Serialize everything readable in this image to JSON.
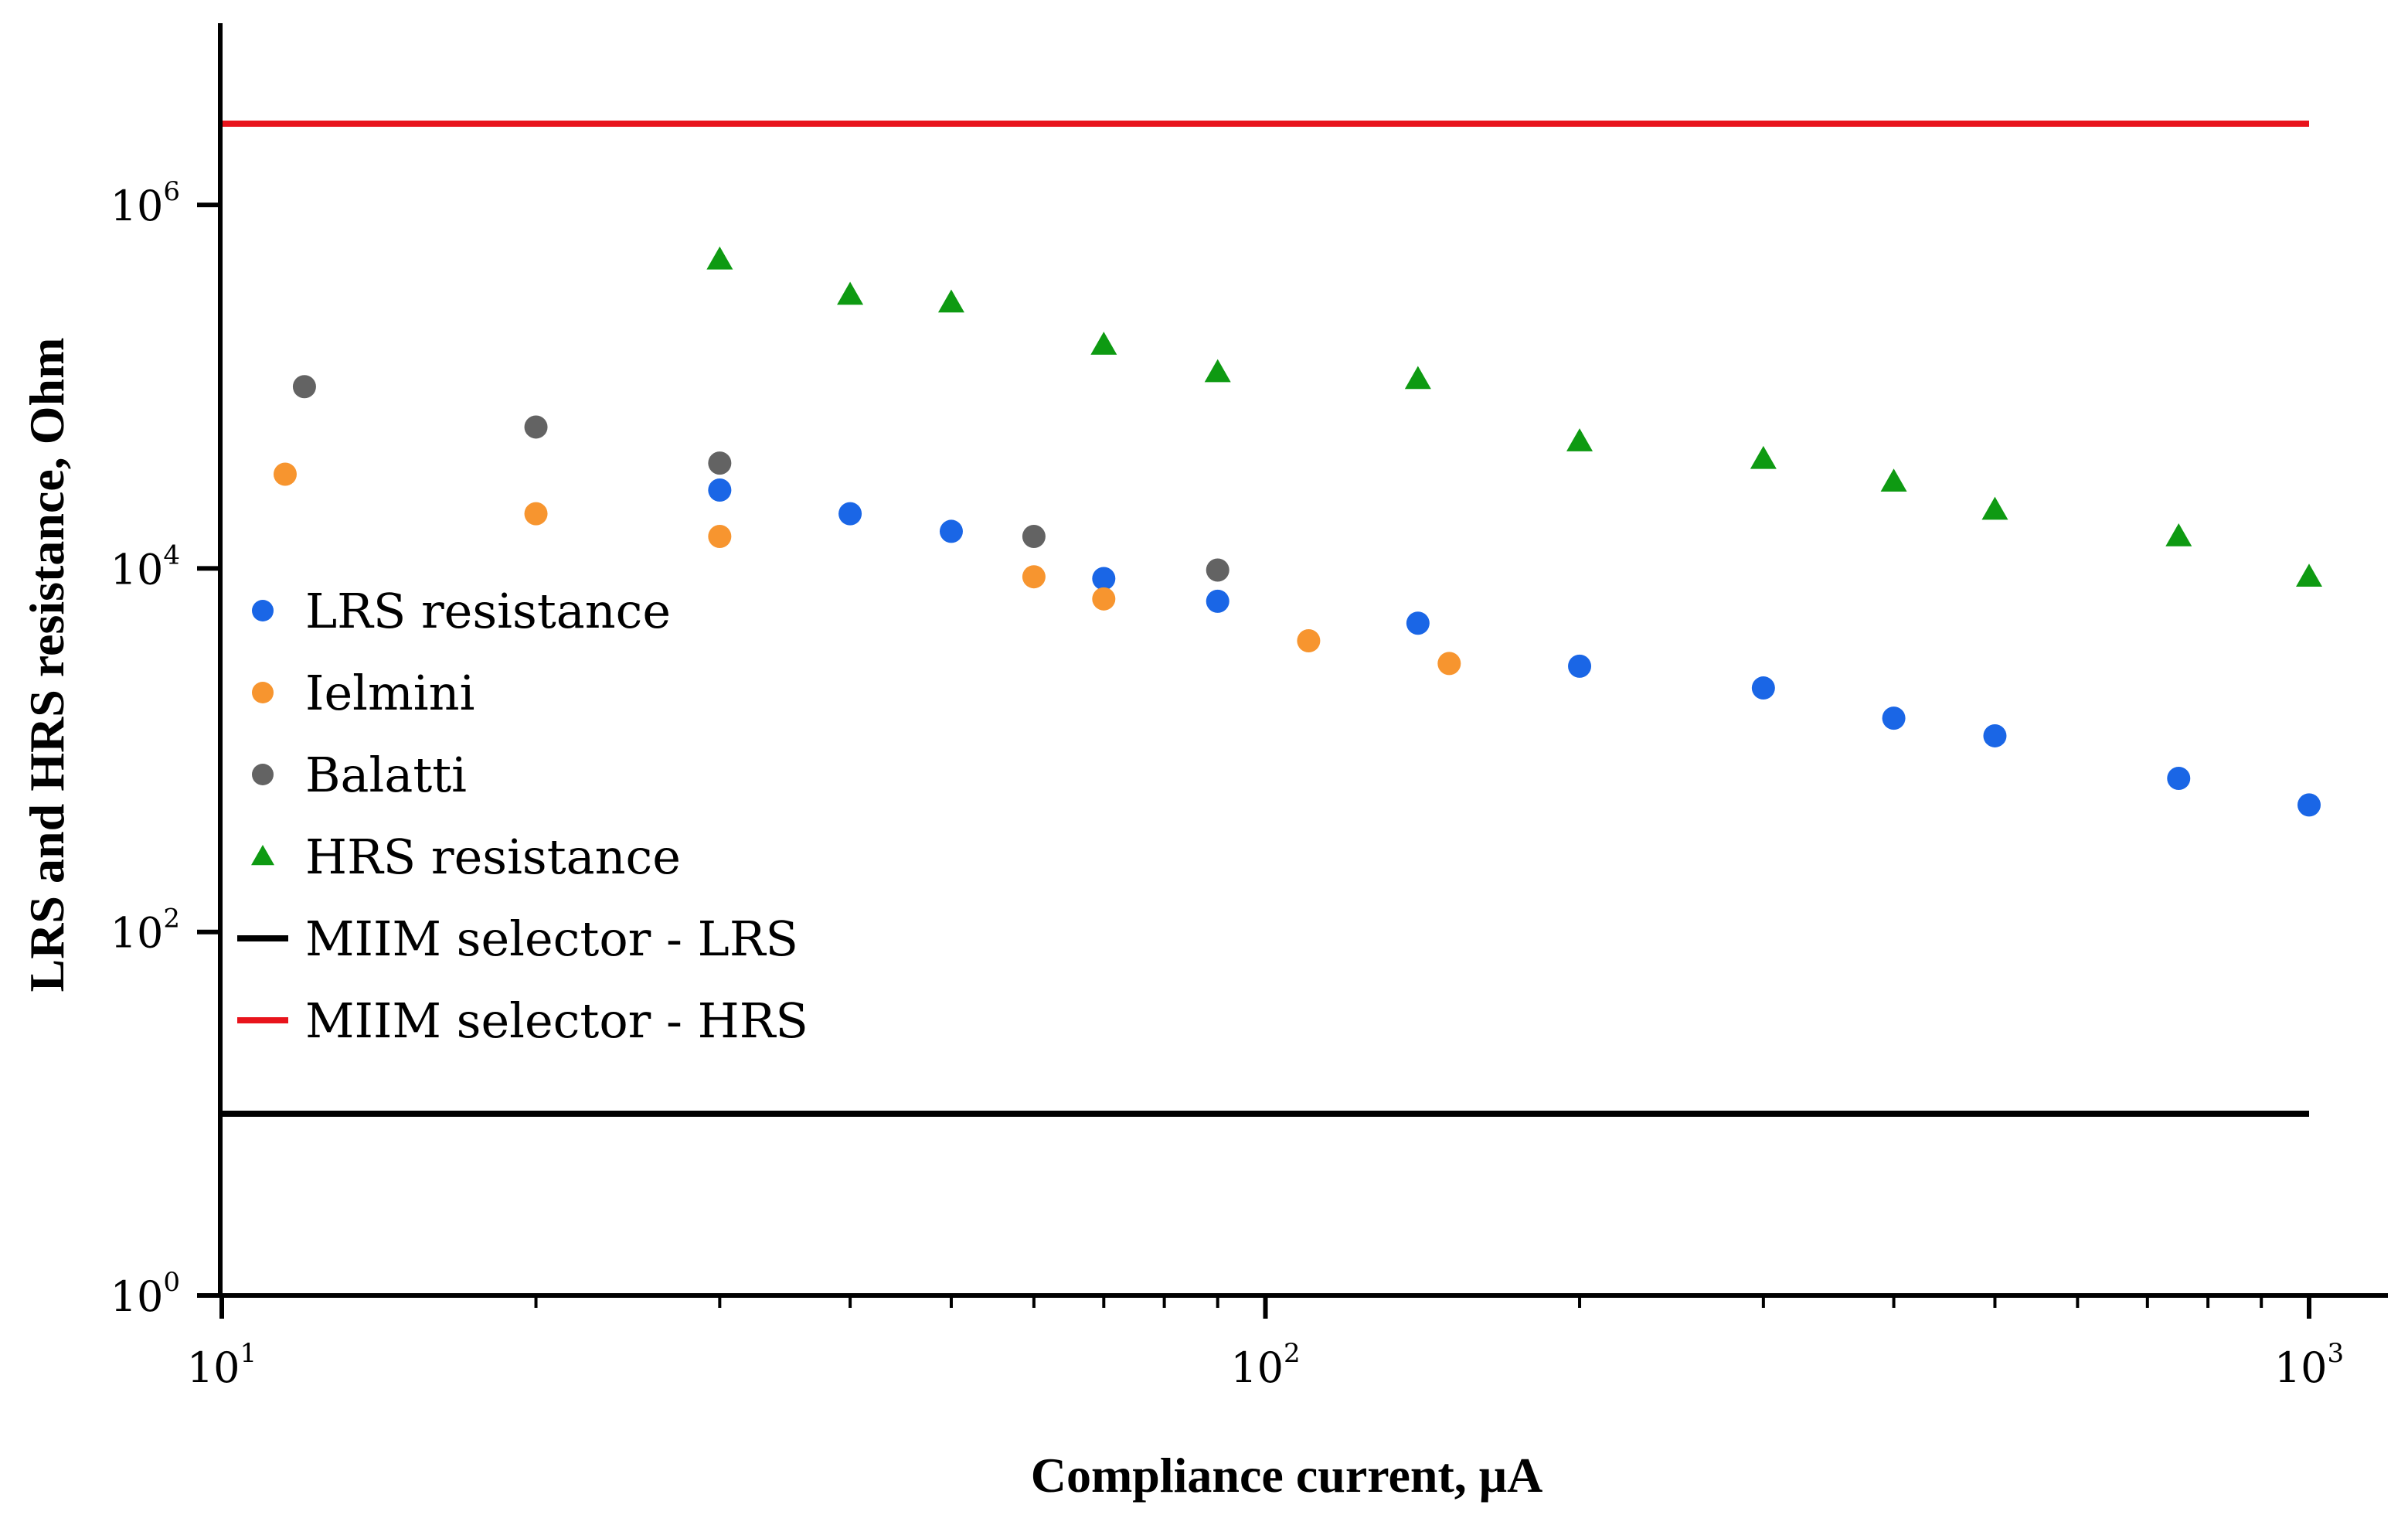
{
  "chart_data": {
    "type": "scatter",
    "title": "",
    "xlabel": "Compliance current, μA",
    "ylabel": "LRS and HRS resistance, Ohm",
    "xscale": "log",
    "yscale": "log",
    "xlim": [
      10,
      1000
    ],
    "ylim": [
      1,
      10000000
    ],
    "x_ticks": [
      {
        "value": 10,
        "base": "10",
        "exp": "1"
      },
      {
        "value": 100,
        "base": "10",
        "exp": "2"
      },
      {
        "value": 1000,
        "base": "10",
        "exp": "3"
      }
    ],
    "y_ticks": [
      {
        "value": 1,
        "base": "10",
        "exp": "0"
      },
      {
        "value": 100,
        "base": "10",
        "exp": "2"
      },
      {
        "value": 10000,
        "base": "10",
        "exp": "4"
      },
      {
        "value": 1000000,
        "base": "10",
        "exp": "6"
      }
    ],
    "legend_position": "center-left",
    "series": [
      {
        "name": "LRS resistance",
        "marker": "circle",
        "color": "#1a66e6",
        "x": [
          30,
          40,
          50,
          70,
          90,
          140,
          200,
          300,
          400,
          500,
          750,
          1000
        ],
        "y": [
          27000,
          20000,
          16000,
          8800,
          6600,
          5000,
          2900,
          2200,
          1500,
          1200,
          700,
          500
        ]
      },
      {
        "name": "Ielmini",
        "marker": "circle",
        "color": "#f7952f",
        "x": [
          11.5,
          20,
          30,
          60,
          70,
          110,
          150
        ],
        "y": [
          33000,
          20000,
          15000,
          9000,
          6800,
          4000,
          3000
        ]
      },
      {
        "name": "Balatti",
        "marker": "circle",
        "color": "#636363",
        "x": [
          12,
          20,
          30,
          60,
          90
        ],
        "y": [
          100000,
          60000,
          38000,
          15000,
          9800
        ]
      },
      {
        "name": "HRS resistance",
        "marker": "triangle",
        "color": "#0e9a12",
        "x": [
          30,
          40,
          50,
          70,
          90,
          140,
          200,
          300,
          400,
          500,
          750,
          1000
        ],
        "y": [
          500000,
          320000,
          290000,
          170000,
          120000,
          110000,
          50000,
          40000,
          30000,
          21000,
          15000,
          9000
        ]
      },
      {
        "name": "MIIM selector - LRS",
        "marker": "line",
        "color": "#000000",
        "x": [
          10,
          1000
        ],
        "y": [
          10,
          10
        ]
      },
      {
        "name": "MIIM selector - HRS",
        "marker": "line",
        "color": "#e8141c",
        "x": [
          10,
          1000
        ],
        "y": [
          2800000,
          2800000
        ]
      }
    ]
  }
}
